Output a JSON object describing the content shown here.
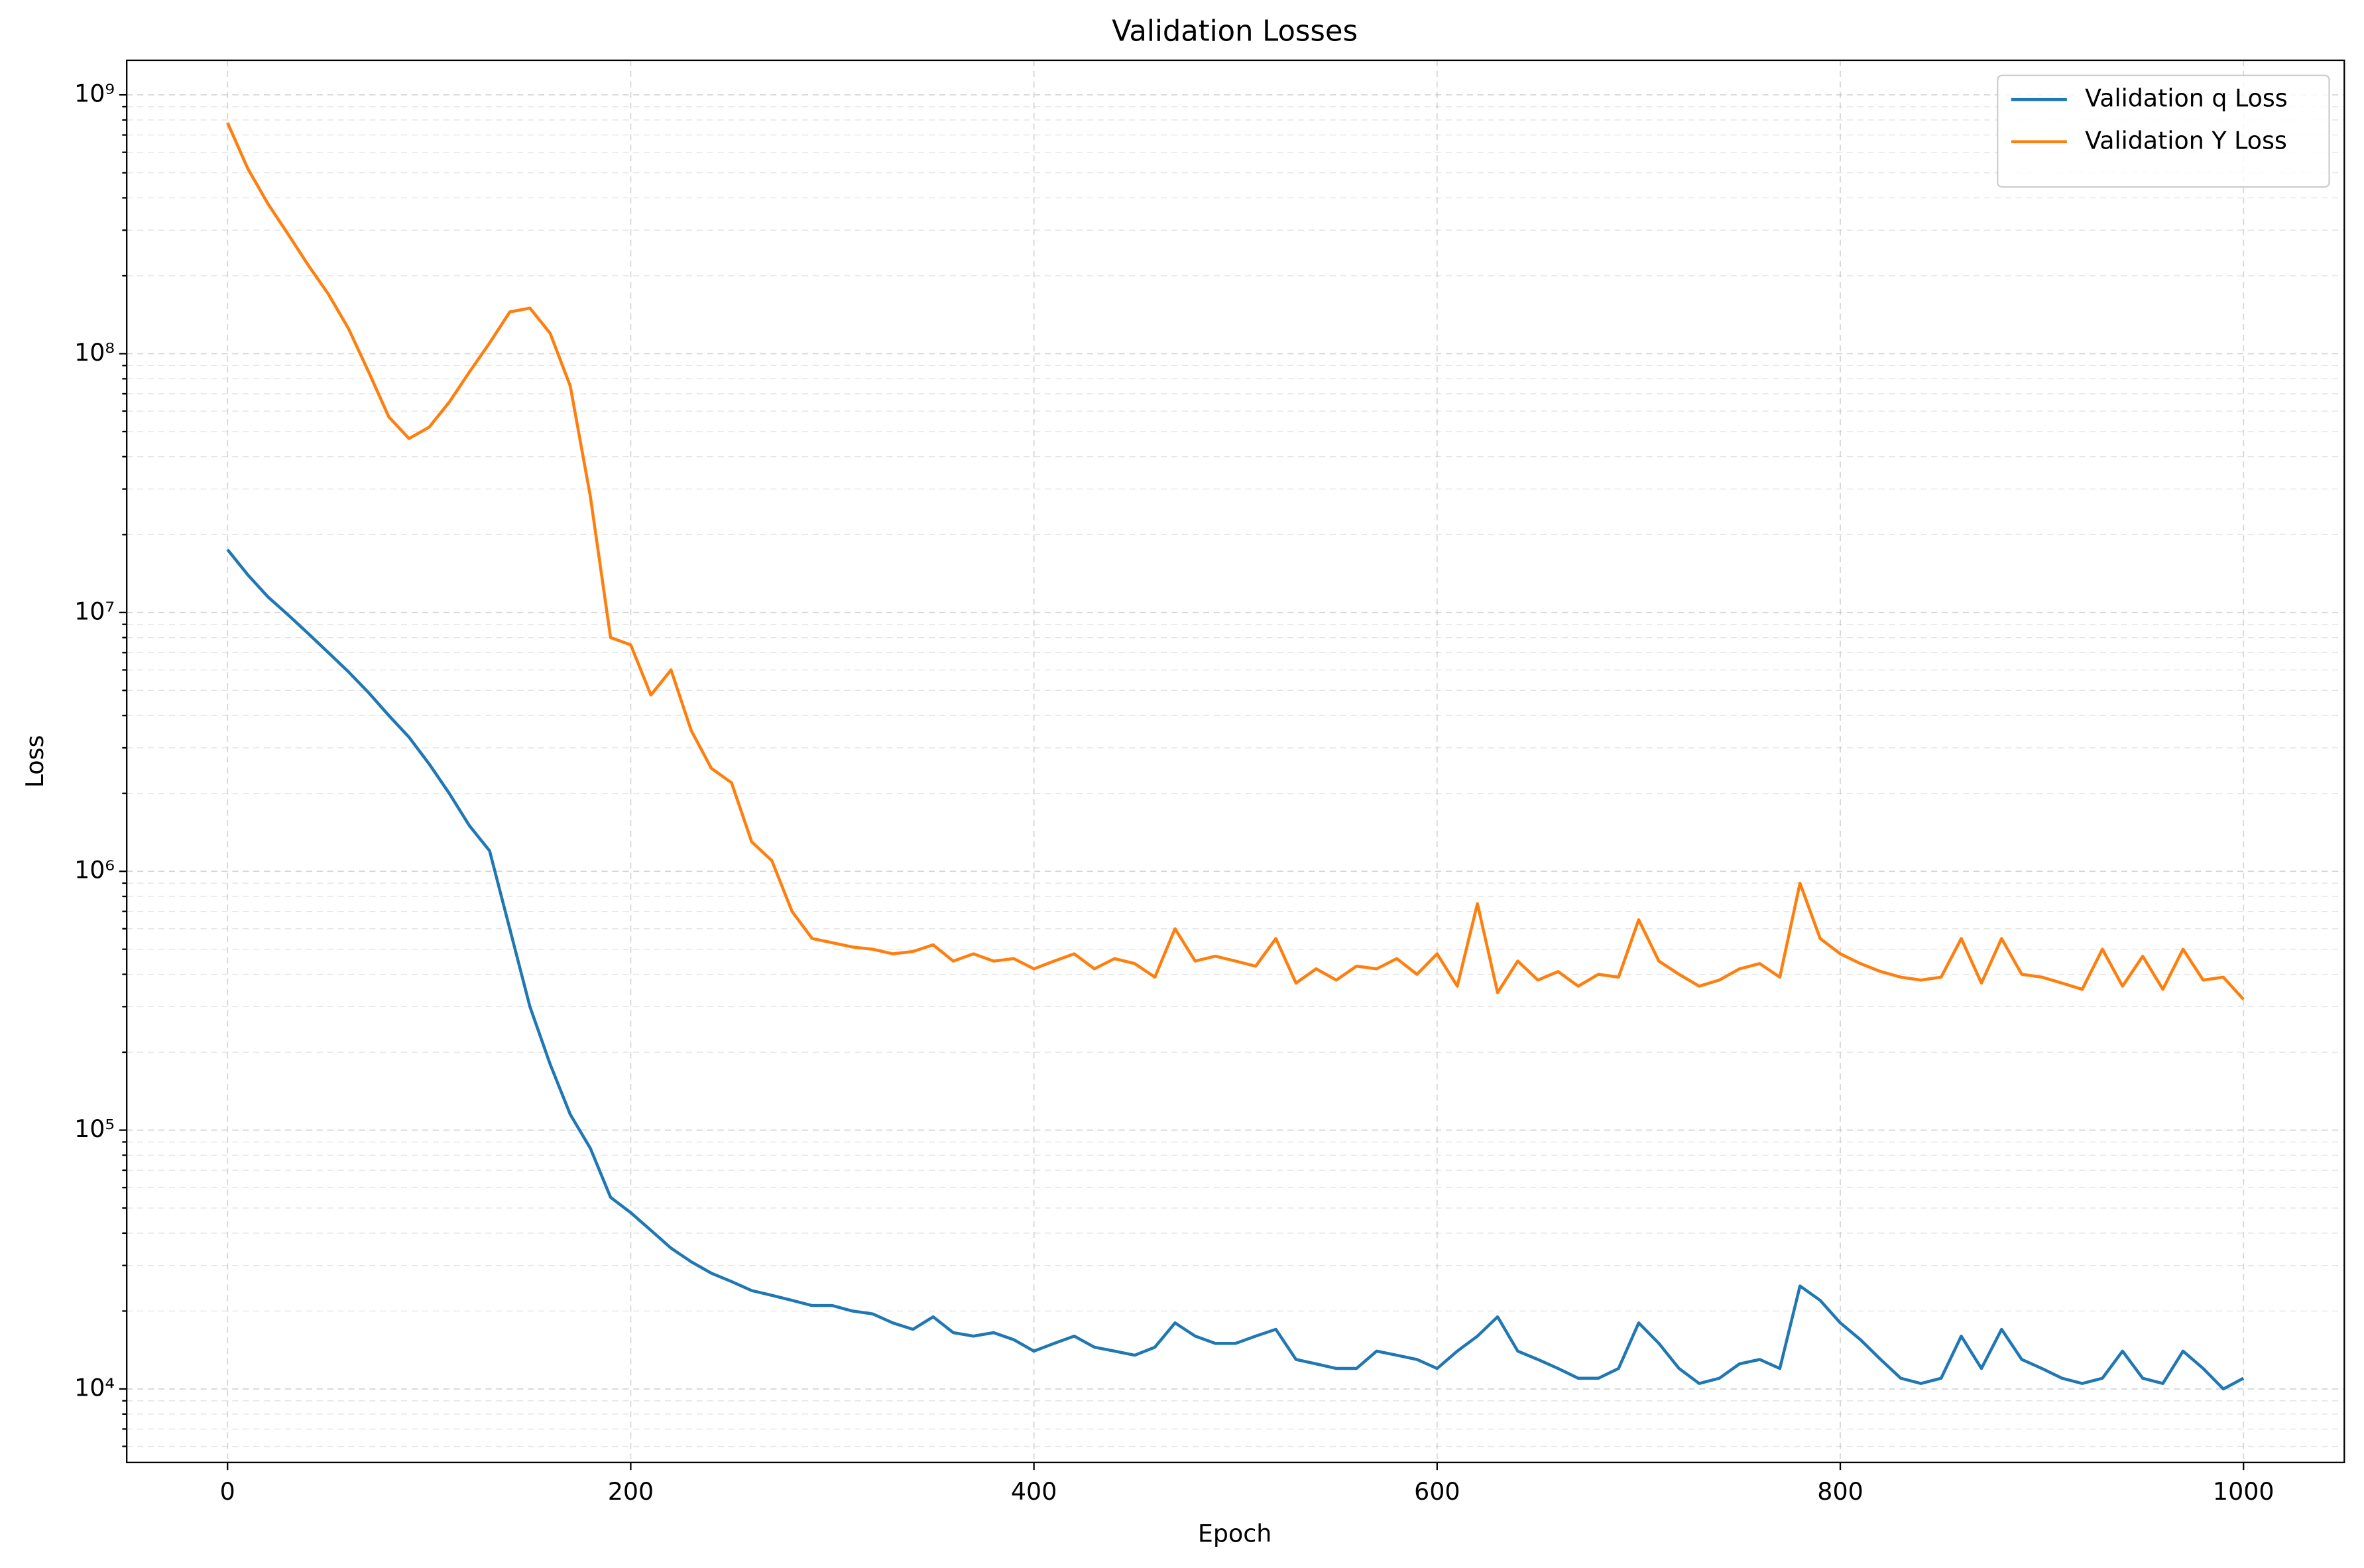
{
  "chart_data": {
    "type": "line",
    "title": "Validation Losses",
    "xlabel": "Epoch",
    "ylabel": "Loss",
    "log_y": true,
    "grid": true,
    "legend": "upper right",
    "xlim": [
      -50,
      1050
    ],
    "xticks": [
      0,
      200,
      400,
      600,
      800,
      1000
    ],
    "ylim": [
      5200,
      1360000000
    ],
    "yticks": [
      {
        "value": 10000,
        "label": "10⁴"
      },
      {
        "value": 100000,
        "label": "10⁵"
      },
      {
        "value": 1000000,
        "label": "10⁶"
      },
      {
        "value": 10000000,
        "label": "10⁷"
      },
      {
        "value": 100000000,
        "label": "10⁸"
      },
      {
        "value": 1000000000,
        "label": "10⁹"
      }
    ],
    "yminorticks": [
      6000,
      7000,
      8000,
      9000,
      20000,
      30000,
      40000,
      50000,
      60000,
      70000,
      80000,
      90000,
      200000,
      300000,
      400000,
      500000,
      600000,
      700000,
      800000,
      900000,
      2000000,
      3000000,
      4000000,
      5000000,
      6000000,
      7000000,
      8000000,
      9000000,
      20000000,
      30000000,
      40000000,
      50000000,
      60000000,
      70000000,
      80000000,
      90000000,
      200000000,
      300000000,
      400000000,
      500000000,
      600000000,
      700000000,
      800000000,
      900000000
    ],
    "x": [
      0,
      10,
      20,
      30,
      40,
      50,
      60,
      70,
      80,
      90,
      100,
      110,
      120,
      130,
      140,
      150,
      160,
      170,
      180,
      190,
      200,
      210,
      220,
      230,
      240,
      250,
      260,
      270,
      280,
      290,
      300,
      310,
      320,
      330,
      340,
      350,
      360,
      370,
      380,
      390,
      400,
      410,
      420,
      430,
      440,
      450,
      460,
      470,
      480,
      490,
      500,
      510,
      520,
      530,
      540,
      550,
      560,
      570,
      580,
      590,
      600,
      610,
      620,
      630,
      640,
      650,
      660,
      670,
      680,
      690,
      700,
      710,
      720,
      730,
      740,
      750,
      760,
      770,
      780,
      790,
      800,
      810,
      820,
      830,
      840,
      850,
      860,
      870,
      880,
      890,
      900,
      910,
      920,
      930,
      940,
      950,
      960,
      970,
      980,
      990,
      1000
    ],
    "series": [
      {
        "name": "Validation q Loss",
        "color": "#1f77b4",
        "values": [
          17500000,
          14000000,
          11500000,
          9800000,
          8300000,
          7000000,
          5900000,
          4900000,
          4000000,
          3300000,
          2600000,
          2000000,
          1500000,
          1200000,
          600000,
          300000,
          180000,
          115000,
          85000,
          55000,
          48000,
          41000,
          35000,
          31000,
          28000,
          26000,
          24000,
          23000,
          22000,
          21000,
          21000,
          20000,
          19500,
          18000,
          17000,
          19000,
          16500,
          16000,
          16500,
          15500,
          14000,
          15000,
          16000,
          14500,
          14000,
          13500,
          14500,
          18000,
          16000,
          15000,
          15000,
          16000,
          17000,
          13000,
          12500,
          12000,
          12000,
          14000,
          13500,
          13000,
          12000,
          14000,
          16000,
          19000,
          14000,
          13000,
          12000,
          11000,
          11000,
          12000,
          18000,
          15000,
          12000,
          10500,
          11000,
          12500,
          13000,
          12000,
          25000,
          22000,
          18000,
          15500,
          13000,
          11000,
          10500,
          11000,
          16000,
          12000,
          17000,
          13000,
          12000,
          11000,
          10500,
          11000,
          14000,
          11000,
          10500,
          14000,
          12000,
          10000,
          11000
        ]
      },
      {
        "name": "Validation Y Loss",
        "color": "#ff7f0e",
        "values": [
          780000000,
          520000000,
          380000000,
          290000000,
          220000000,
          170000000,
          125000000,
          85000000,
          57000000,
          47000000,
          52000000,
          65000000,
          85000000,
          110000000,
          145000000,
          150000000,
          120000000,
          75000000,
          28000000,
          8000000,
          7500000,
          4800000,
          6000000,
          3500000,
          2500000,
          2200000,
          1300000,
          1100000,
          700000,
          550000,
          530000,
          510000,
          500000,
          480000,
          490000,
          520000,
          450000,
          480000,
          450000,
          460000,
          420000,
          450000,
          480000,
          420000,
          460000,
          440000,
          390000,
          600000,
          450000,
          470000,
          450000,
          430000,
          550000,
          370000,
          420000,
          380000,
          430000,
          420000,
          460000,
          400000,
          480000,
          360000,
          750000,
          340000,
          450000,
          380000,
          410000,
          360000,
          400000,
          390000,
          650000,
          450000,
          400000,
          360000,
          380000,
          420000,
          440000,
          390000,
          900000,
          550000,
          480000,
          440000,
          410000,
          390000,
          380000,
          390000,
          550000,
          370000,
          550000,
          400000,
          390000,
          370000,
          350000,
          500000,
          360000,
          470000,
          350000,
          500000,
          380000,
          390000,
          320000
        ]
      }
    ]
  }
}
